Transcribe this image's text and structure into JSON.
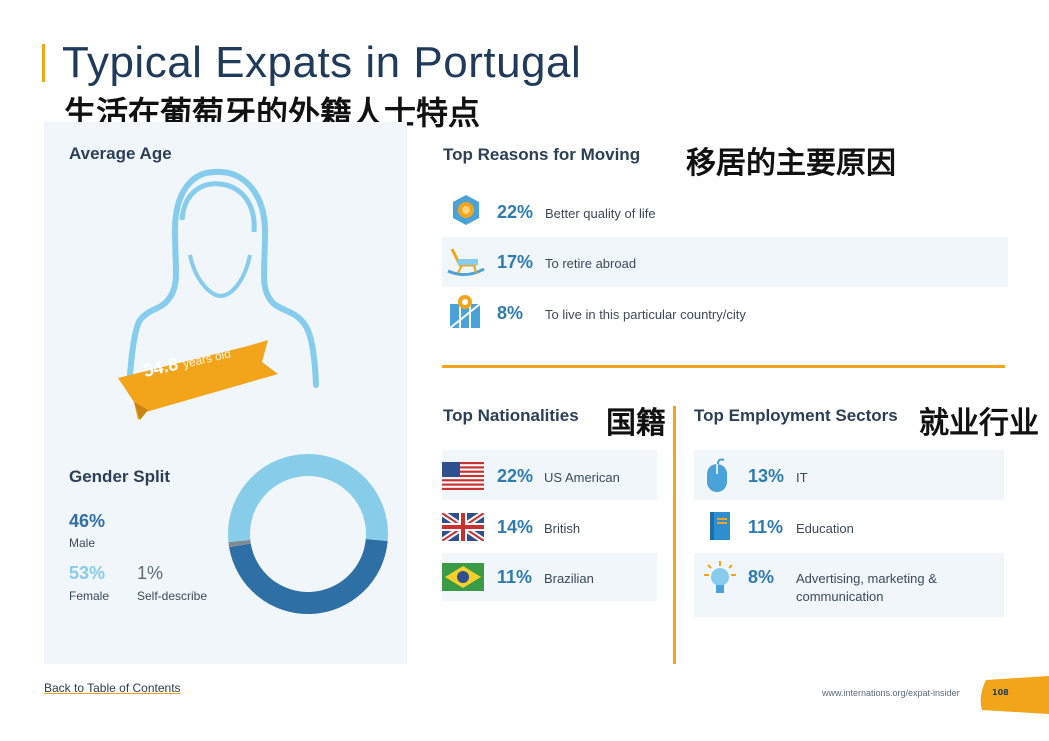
{
  "title": "Typical Expats in Portugal",
  "title_zh": "生活在葡萄牙的外籍人士特点",
  "average_age": {
    "heading": "Average Age",
    "value": "54.8",
    "unit": "years old"
  },
  "gender": {
    "heading": "Gender Split",
    "male_pct": "46%",
    "male_label": "Male",
    "female_pct": "53%",
    "female_label": "Female",
    "self_pct": "1%",
    "self_label": "Self-describe",
    "colors": {
      "male": "#2e6fa5",
      "female": "#87cdea",
      "self": "#7f8c96"
    }
  },
  "reasons": {
    "heading": "Top Reasons for Moving",
    "heading_zh": "移居的主要原因",
    "items": [
      {
        "icon": "quality-badge-icon",
        "pct": "22%",
        "label": "Better quality of life"
      },
      {
        "icon": "rocking-chair-icon",
        "pct": "17%",
        "label": "To retire abroad"
      },
      {
        "icon": "map-pin-icon",
        "pct": "8%",
        "label": "To live in this particular country/city"
      }
    ]
  },
  "nationalities": {
    "heading": "Top Nationalities",
    "heading_zh": "国籍",
    "items": [
      {
        "icon": "us-flag-icon",
        "pct": "22%",
        "label": "US American"
      },
      {
        "icon": "uk-flag-icon",
        "pct": "14%",
        "label": "British"
      },
      {
        "icon": "brazil-flag-icon",
        "pct": "11%",
        "label": "Brazilian"
      }
    ]
  },
  "sectors": {
    "heading": "Top Employment Sectors",
    "heading_zh": "就业行业",
    "items": [
      {
        "icon": "mouse-icon",
        "pct": "13%",
        "label": "IT",
        "label2": ""
      },
      {
        "icon": "book-icon",
        "pct": "11%",
        "label": "Education",
        "label2": ""
      },
      {
        "icon": "lightbulb-icon",
        "pct": "8%",
        "label": "Advertising, marketing &",
        "label2": "communication"
      }
    ]
  },
  "footer": {
    "back_link": "Back to Table of Contents",
    "url": "www.internations.org/expat-insider",
    "page": "108"
  },
  "accent": "#f2a51a"
}
